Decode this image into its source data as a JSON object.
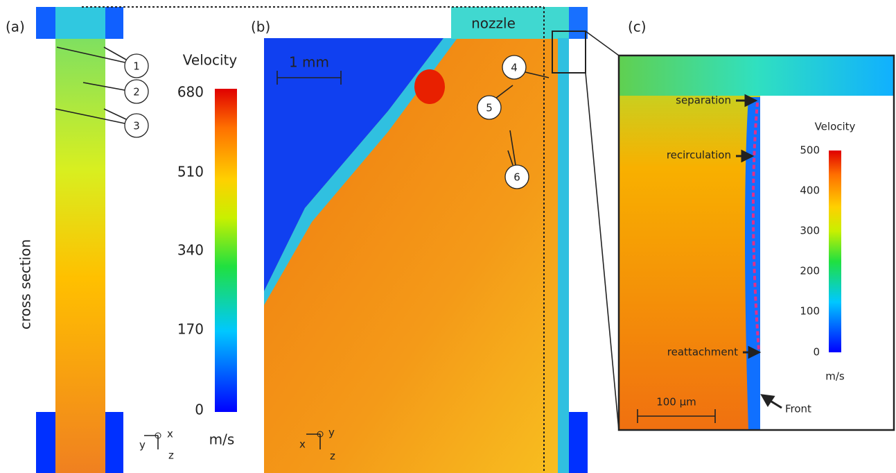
{
  "panel_a": {
    "label": "(a)",
    "side_label": "cross section",
    "callouts": [
      1,
      2,
      3
    ],
    "colorbar": {
      "title": "Velocity",
      "unit": "m/s",
      "ticks": [
        680,
        510,
        340,
        170,
        0
      ]
    },
    "axes": [
      "x",
      "y",
      "z"
    ]
  },
  "panel_b": {
    "label": "(b)",
    "nozzle": "nozzle",
    "scale_bar": "1 mm",
    "callouts": [
      4,
      5,
      6
    ],
    "axes": [
      "y",
      "x",
      "z"
    ]
  },
  "panel_c": {
    "label": "(c)",
    "annotations": [
      "separation",
      "recirculation",
      "reattachment",
      "Front"
    ],
    "scale_bar": "100 µm",
    "colorbar": {
      "title": "Velocity",
      "unit": "m/s",
      "ticks": [
        500,
        400,
        300,
        200,
        100,
        0
      ]
    }
  }
}
